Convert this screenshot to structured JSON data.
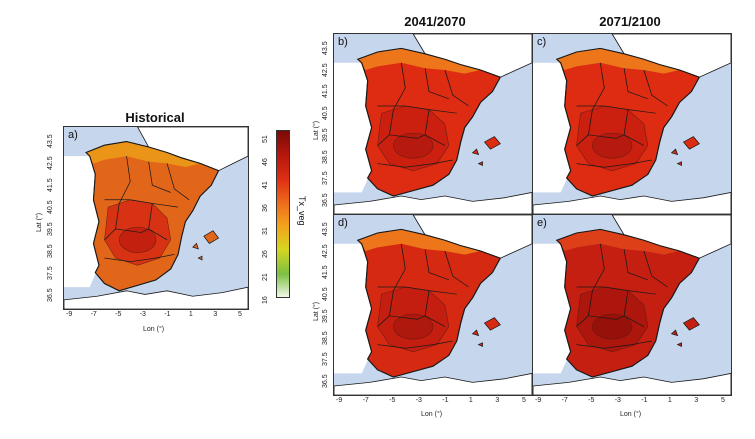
{
  "titles": {
    "historical": "Historical",
    "mid": "2041/2070",
    "late": "2071/2100"
  },
  "panels": [
    {
      "id": "a",
      "label": "a)",
      "fill": "#e2661a",
      "accent": "#ec9a18",
      "south": "#d52a12",
      "inner": "#c11d10"
    },
    {
      "id": "b",
      "label": "b)",
      "fill": "#dd2c12",
      "accent": "#f07e1c",
      "south": "#c81f10",
      "inner": "#b31a0e"
    },
    {
      "id": "c",
      "label": "c)",
      "fill": "#dd2c12",
      "accent": "#f07e1c",
      "south": "#c81f10",
      "inner": "#b31a0e"
    },
    {
      "id": "d",
      "label": "d)",
      "fill": "#d62912",
      "accent": "#f07e1c",
      "south": "#c21d10",
      "inner": "#ab180d"
    },
    {
      "id": "e",
      "label": "e)",
      "fill": "#c41f11",
      "accent": "#e0421a",
      "south": "#a8150d",
      "inner": "#931109"
    }
  ],
  "axes": {
    "lat_title": "Lat (°)",
    "lon_title": "Lon (°)",
    "lat_ticks": [
      "36.5",
      "37.5",
      "38.5",
      "39.5",
      "40.5",
      "41.5",
      "42.5",
      "43.5"
    ],
    "lon_ticks": [
      "-9",
      "-7",
      "-5",
      "-3",
      "-1",
      "1",
      "3",
      "5"
    ]
  },
  "colorbar": {
    "title": "Tx_veg",
    "ticks": [
      "16",
      "21",
      "26",
      "31",
      "36",
      "41",
      "46",
      "51"
    ],
    "colors": [
      "#f4f9ec",
      "#7dc043",
      "#d6d61f",
      "#f3a21d",
      "#ee6a1c",
      "#dd2e14",
      "#b3160d",
      "#7a0a07"
    ]
  },
  "colors": {
    "sea": "#c6d6ec",
    "land_outside": "#ffffff",
    "border": "#1a1a1a"
  }
}
